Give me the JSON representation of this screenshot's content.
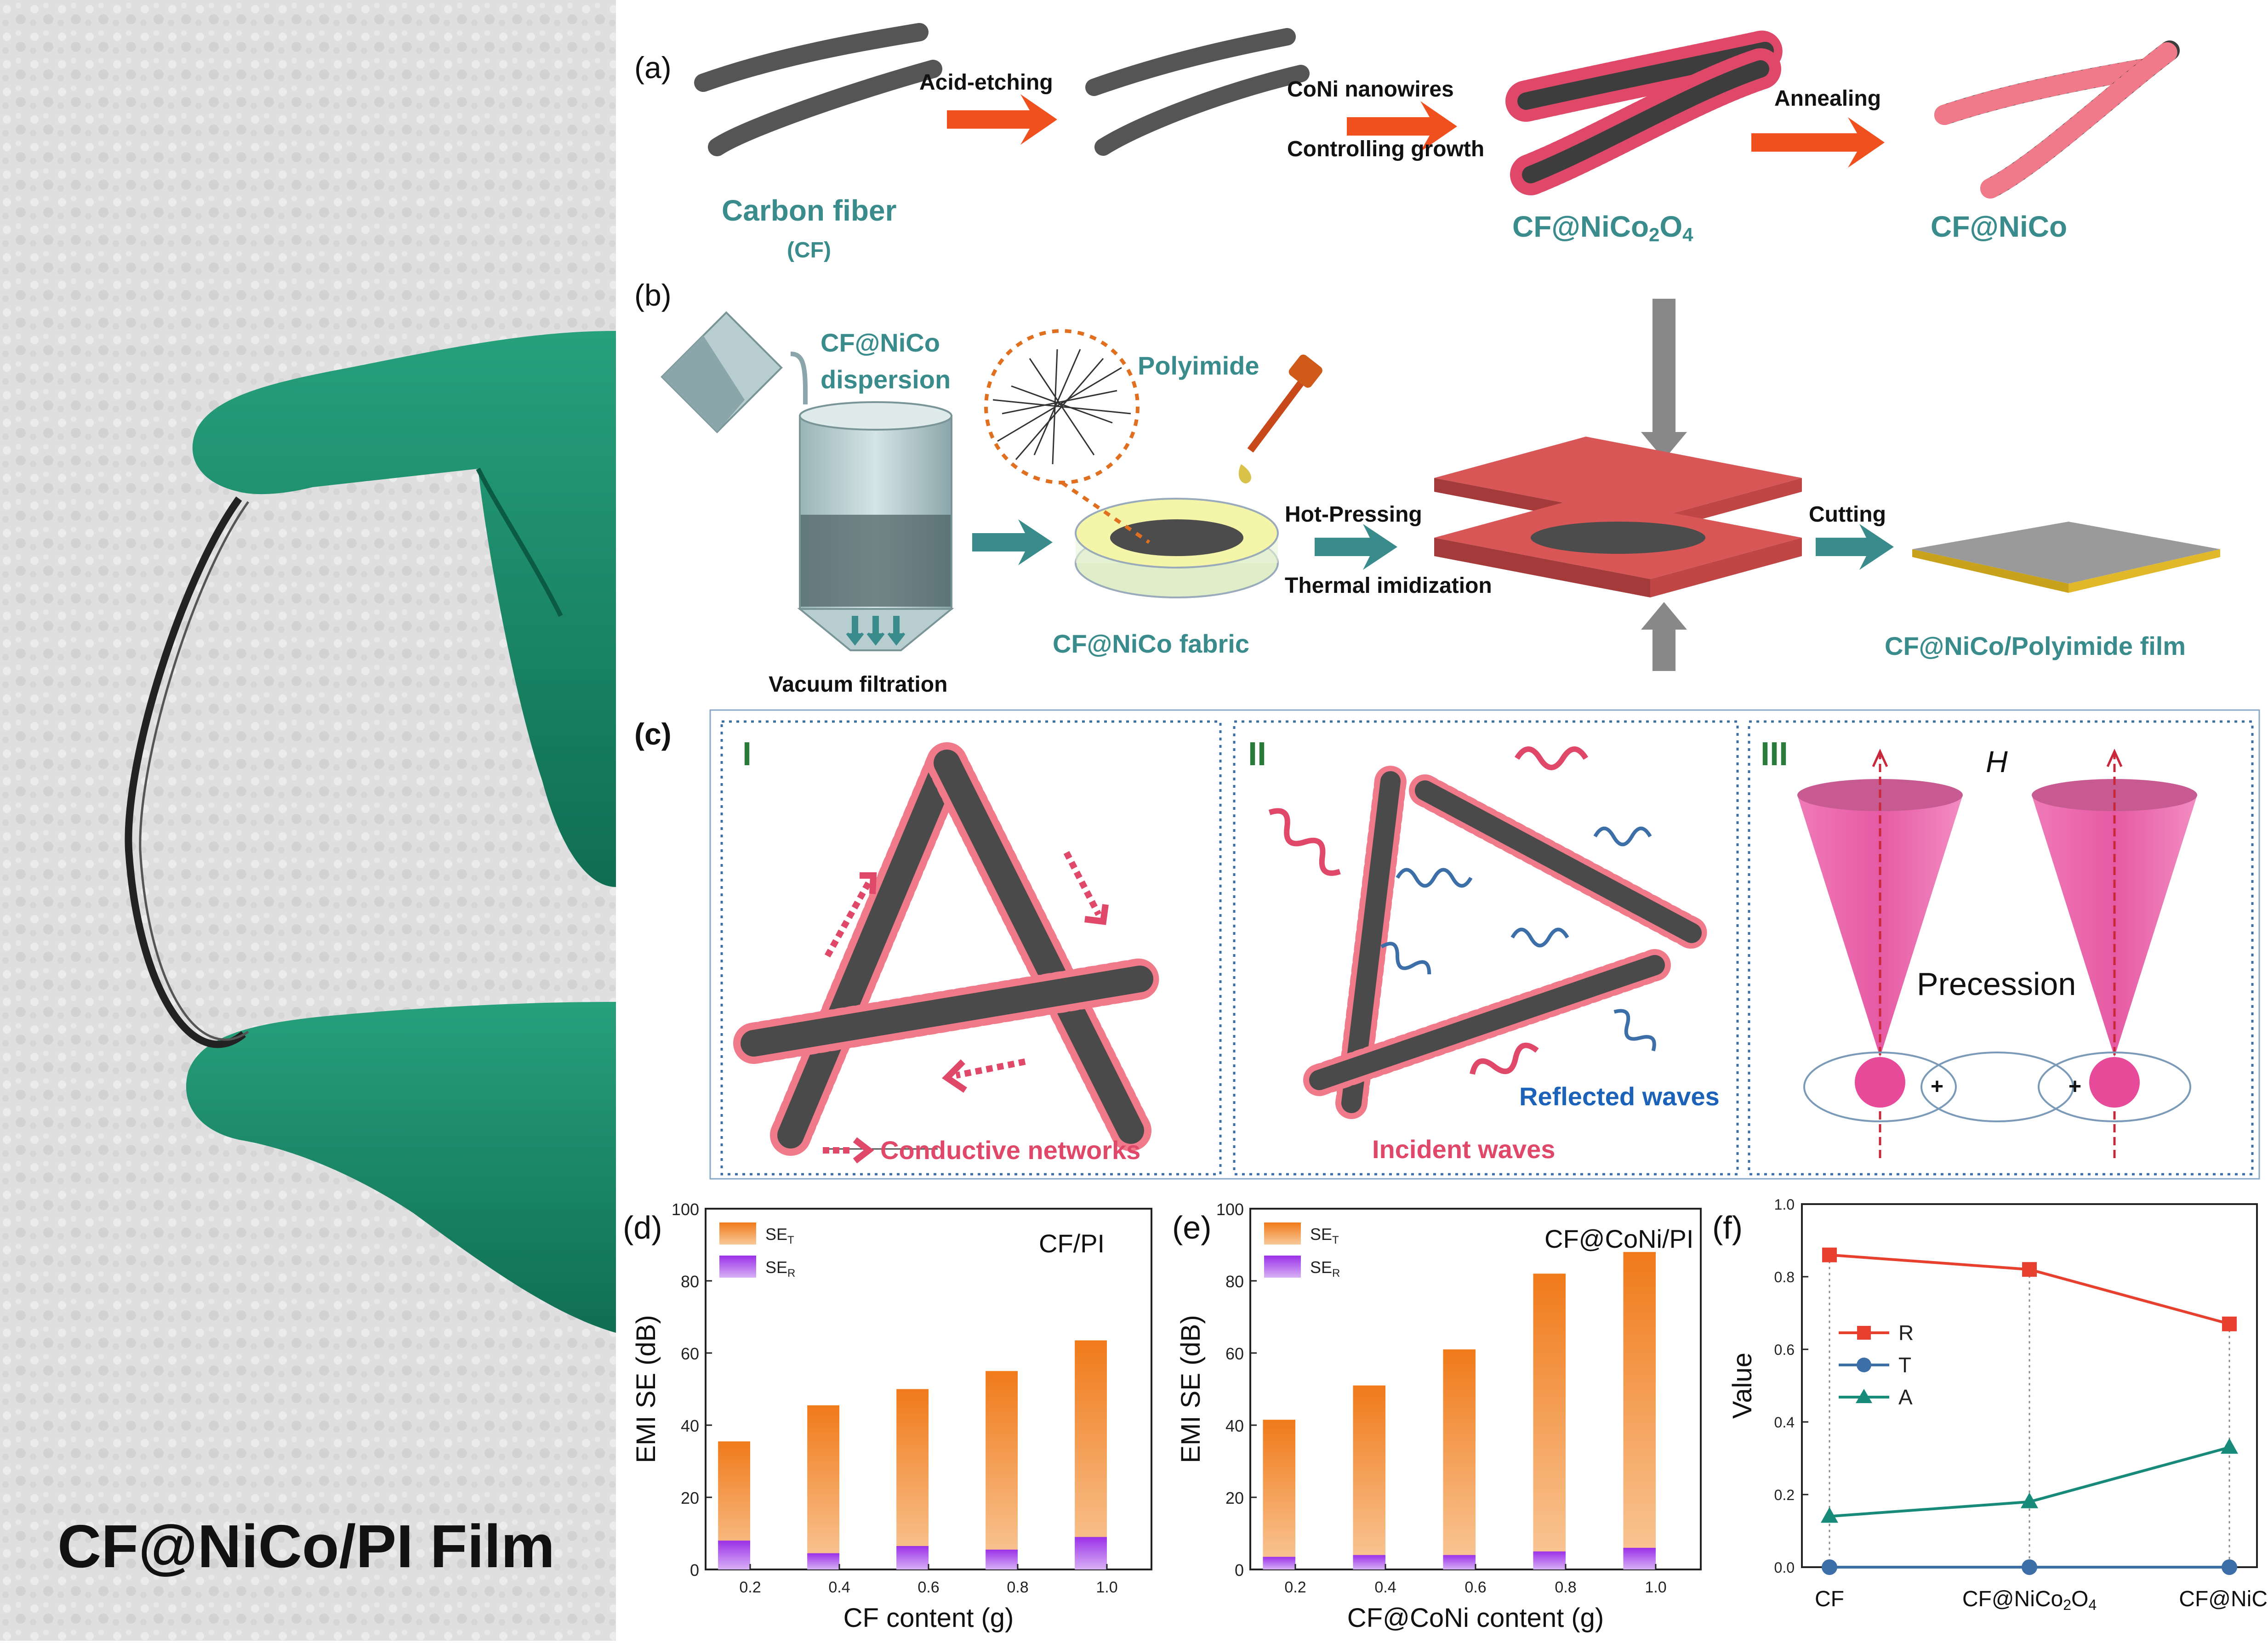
{
  "photo_label": "CF@NiCo/PI Film",
  "panel_a": {
    "letter": "(a)",
    "carbon_fiber": "Carbon fiber",
    "cf_abbrev": "(CF)",
    "acid_etching": "Acid-etching",
    "conwires": "CoNi nanowires",
    "controlling": "Controlling growth",
    "cf_nico2o4_prefix": "CF@NiCo",
    "cf_nico2o4_sub2": "2",
    "cf_nico2o4_o": "O",
    "cf_nico2o4_sub4": "4",
    "annealing": "Annealing",
    "cf_nico": "CF@NiCo"
  },
  "panel_b": {
    "letter": "(b)",
    "dispersion_line1": "CF@NiCo",
    "dispersion_line2": "dispersion",
    "vacuum": "Vacuum filtration",
    "polyimide": "Polyimide",
    "fabric": "CF@NiCo fabric",
    "hot_pressing": "Hot-Pressing",
    "thermal": "Thermal imidization",
    "cutting": "Cutting",
    "film": "CF@NiCo/Polyimide film"
  },
  "panel_c": {
    "letter": "(c)",
    "sub1": "I",
    "sub2": "II",
    "sub3": "III",
    "conductive": "Conductive networks",
    "incident": "Incident waves",
    "reflected": "Reflected waves",
    "precession": "Precession",
    "field": "H",
    "plus": "+"
  },
  "colors": {
    "teal": "#3a8c8c",
    "pink": "#e0486a",
    "orange": "#f07a1a",
    "purple": "#9b30e8",
    "red_line": "#e8402e",
    "blue_line": "#3c6ea8",
    "green_line": "#178a7a",
    "glove": "#1b8c6a",
    "arrow_orange": "#f0501e"
  },
  "chart_data": [
    {
      "type": "bar",
      "panel_letter": "(d)",
      "title": "CF/PI",
      "xlabel": "CF content (g)",
      "ylabel": "EMI SE (dB)",
      "categories": [
        "0.2",
        "0.4",
        "0.6",
        "0.8",
        "1.0"
      ],
      "series": [
        {
          "name": "SE",
          "name_sub": "T",
          "values": [
            35.5,
            45.5,
            50,
            55,
            63.5
          ]
        },
        {
          "name": "SE",
          "name_sub": "R",
          "values": [
            8,
            4.5,
            6.5,
            5.5,
            9
          ]
        }
      ],
      "ylim": [
        0,
        100
      ],
      "yticks": [
        "0",
        "20",
        "40",
        "60",
        "80",
        "100"
      ],
      "legend": "top-left"
    },
    {
      "type": "bar",
      "panel_letter": "(e)",
      "title": "CF@CoNi/PI",
      "xlabel": "CF@CoNi content (g)",
      "ylabel": "EMI SE (dB)",
      "categories": [
        "0.2",
        "0.4",
        "0.6",
        "0.8",
        "1.0"
      ],
      "series": [
        {
          "name": "SE",
          "name_sub": "T",
          "values": [
            41.5,
            51,
            61,
            82,
            88
          ]
        },
        {
          "name": "SE",
          "name_sub": "R",
          "values": [
            3.5,
            4,
            4,
            5,
            6
          ]
        }
      ],
      "ylim": [
        0,
        100
      ],
      "yticks": [
        "0",
        "20",
        "40",
        "60",
        "80",
        "100"
      ],
      "legend": "top-left"
    },
    {
      "type": "line",
      "panel_letter": "(f)",
      "ylabel": "Value",
      "categories": [
        "CF",
        "CF@NiCo2O4",
        "CF@NiCo"
      ],
      "category_labels": [
        {
          "text": "CF"
        },
        {
          "text": "CF@NiCo",
          "sub": "2",
          "mid": "O",
          "sub2": "4"
        },
        {
          "text": "CF@NiCo"
        }
      ],
      "series": [
        {
          "name": "R",
          "values": [
            0.86,
            0.82,
            0.67
          ]
        },
        {
          "name": "T",
          "values": [
            0.0,
            0.0,
            0.0
          ]
        },
        {
          "name": "A",
          "values": [
            0.14,
            0.18,
            0.33
          ]
        }
      ],
      "ylim": [
        0,
        1.0
      ],
      "yticks": [
        "0.0",
        "0.2",
        "0.4",
        "0.6",
        "0.8",
        "1.0"
      ],
      "legend": "middle-left"
    }
  ]
}
